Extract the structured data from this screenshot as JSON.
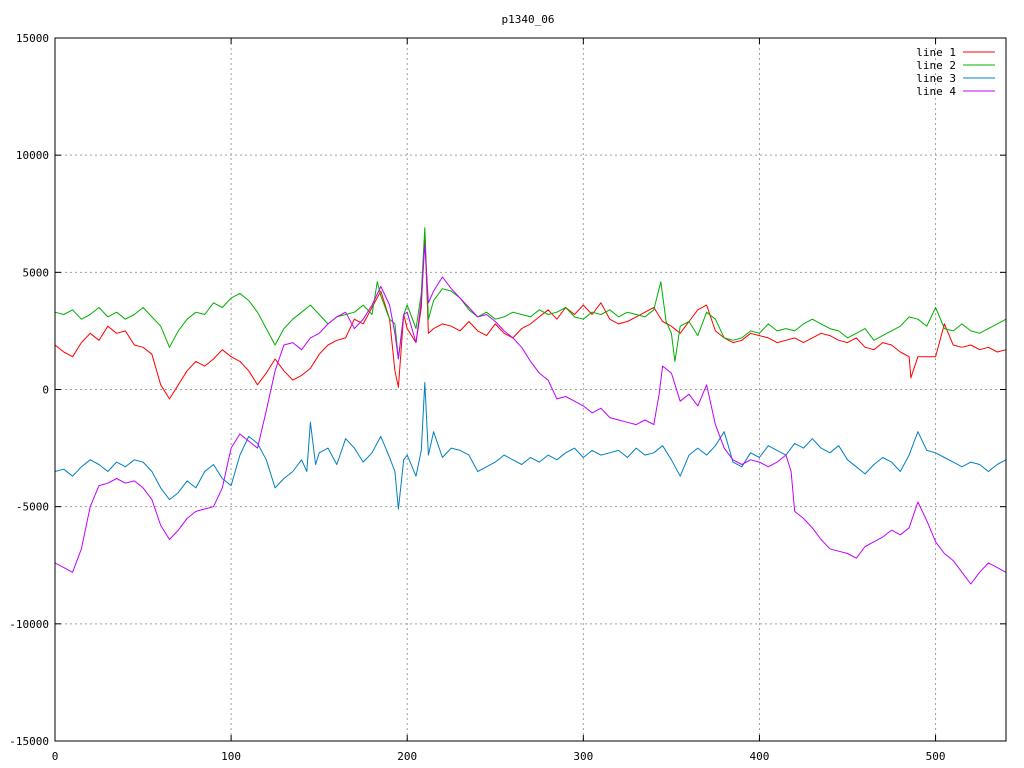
{
  "chart_data": {
    "type": "line",
    "title": "p1340_06",
    "xlabel": "",
    "ylabel": "",
    "xlim": [
      0,
      540
    ],
    "ylim": [
      -15000,
      15000
    ],
    "x_ticks": [
      "0",
      "100",
      "200",
      "300",
      "400",
      "500"
    ],
    "y_ticks": [
      "-15000",
      "-10000",
      "-5000",
      "0",
      "5000",
      "10000",
      "15000"
    ],
    "grid": true,
    "legend_position": "top-right",
    "series": [
      {
        "name": "line 1",
        "color": "#ff0000",
        "x": [
          0,
          5,
          10,
          15,
          20,
          25,
          30,
          35,
          40,
          45,
          50,
          55,
          60,
          65,
          70,
          75,
          80,
          85,
          90,
          95,
          100,
          105,
          110,
          115,
          120,
          125,
          130,
          135,
          140,
          145,
          150,
          155,
          160,
          165,
          170,
          175,
          180,
          185,
          190,
          193,
          195,
          198,
          200,
          205,
          208,
          210,
          212,
          215,
          220,
          225,
          230,
          235,
          240,
          245,
          250,
          255,
          260,
          265,
          270,
          275,
          280,
          285,
          290,
          295,
          300,
          305,
          310,
          315,
          320,
          325,
          330,
          335,
          340,
          345,
          350,
          355,
          360,
          365,
          370,
          375,
          380,
          385,
          390,
          395,
          400,
          405,
          410,
          415,
          420,
          425,
          430,
          435,
          440,
          445,
          450,
          455,
          460,
          465,
          470,
          475,
          480,
          485,
          486,
          490,
          495,
          500,
          505,
          510,
          515,
          520,
          525,
          530,
          535,
          540
        ],
        "y": [
          1900,
          1600,
          1400,
          2000,
          2400,
          2100,
          2700,
          2400,
          2500,
          1900,
          1800,
          1500,
          200,
          -400,
          200,
          800,
          1200,
          1000,
          1300,
          1700,
          1400,
          1200,
          800,
          200,
          700,
          1300,
          800,
          400,
          600,
          900,
          1500,
          1900,
          2100,
          2200,
          3000,
          2800,
          3500,
          4200,
          3000,
          800,
          100,
          3200,
          2600,
          2000,
          3500,
          6700,
          2400,
          2600,
          2800,
          2700,
          2500,
          2900,
          2500,
          2300,
          2800,
          2400,
          2200,
          2600,
          2800,
          3100,
          3400,
          3000,
          3500,
          3200,
          3600,
          3200,
          3700,
          3000,
          2800,
          2900,
          3100,
          3300,
          3500,
          2900,
          2700,
          2400,
          2900,
          3400,
          3600,
          2500,
          2200,
          2000,
          2100,
          2400,
          2300,
          2200,
          2000,
          2100,
          2200,
          2000,
          2200,
          2400,
          2300,
          2100,
          2000,
          2200,
          1800,
          1700,
          2000,
          1900,
          1600,
          1400,
          500,
          1400,
          1400,
          1400,
          2800,
          1900,
          1800,
          1900,
          1700,
          1800,
          1600,
          1700
        ]
      },
      {
        "name": "line 2",
        "color": "#00b000",
        "x": [
          0,
          5,
          10,
          15,
          20,
          25,
          30,
          35,
          40,
          45,
          50,
          55,
          60,
          65,
          70,
          75,
          80,
          85,
          90,
          95,
          100,
          105,
          110,
          115,
          120,
          125,
          130,
          135,
          140,
          145,
          150,
          155,
          160,
          165,
          170,
          175,
          180,
          183,
          185,
          190,
          193,
          195,
          198,
          200,
          205,
          208,
          210,
          212,
          215,
          220,
          225,
          230,
          235,
          240,
          245,
          250,
          255,
          260,
          265,
          270,
          275,
          280,
          285,
          290,
          295,
          300,
          305,
          310,
          315,
          320,
          325,
          330,
          335,
          340,
          344,
          347,
          350,
          352,
          355,
          360,
          365,
          370,
          375,
          380,
          385,
          390,
          395,
          400,
          405,
          410,
          415,
          420,
          425,
          430,
          435,
          440,
          445,
          450,
          455,
          460,
          465,
          470,
          475,
          480,
          485,
          490,
          495,
          500,
          505,
          510,
          515,
          520,
          525,
          530,
          535,
          540
        ],
        "y": [
          3300,
          3200,
          3400,
          3000,
          3200,
          3500,
          3100,
          3300,
          3000,
          3200,
          3500,
          3100,
          2700,
          1800,
          2500,
          3000,
          3300,
          3200,
          3700,
          3500,
          3900,
          4100,
          3800,
          3300,
          2600,
          1900,
          2600,
          3000,
          3300,
          3600,
          3200,
          2800,
          3100,
          3200,
          3300,
          3600,
          3200,
          4600,
          4000,
          3000,
          2800,
          1300,
          3200,
          3600,
          2600,
          4100,
          6900,
          3000,
          3800,
          4300,
          4200,
          3900,
          3400,
          3100,
          3300,
          3000,
          3100,
          3300,
          3200,
          3100,
          3400,
          3200,
          3300,
          3500,
          3100,
          3000,
          3300,
          3200,
          3400,
          3100,
          3300,
          3200,
          3100,
          3400,
          4600,
          2900,
          2400,
          1200,
          2700,
          2900,
          2300,
          3300,
          3000,
          2200,
          2100,
          2200,
          2500,
          2400,
          2800,
          2500,
          2600,
          2500,
          2800,
          3000,
          2800,
          2600,
          2500,
          2200,
          2400,
          2600,
          2100,
          2300,
          2500,
          2700,
          3100,
          3000,
          2700,
          3500,
          2600,
          2500,
          2800,
          2500,
          2400,
          2600,
          2800,
          3000
        ]
      },
      {
        "name": "line 3",
        "color": "#0080c0",
        "x": [
          0,
          5,
          10,
          15,
          20,
          25,
          30,
          35,
          40,
          45,
          50,
          55,
          60,
          65,
          70,
          75,
          80,
          85,
          90,
          95,
          100,
          105,
          110,
          115,
          120,
          125,
          130,
          135,
          140,
          143,
          145,
          148,
          150,
          155,
          160,
          165,
          170,
          175,
          180,
          185,
          190,
          193,
          195,
          198,
          200,
          205,
          208,
          210,
          212,
          215,
          220,
          225,
          230,
          235,
          240,
          245,
          250,
          255,
          260,
          265,
          270,
          275,
          280,
          285,
          290,
          295,
          300,
          305,
          310,
          315,
          320,
          325,
          330,
          335,
          340,
          345,
          350,
          355,
          360,
          365,
          370,
          375,
          380,
          385,
          390,
          395,
          400,
          405,
          410,
          415,
          420,
          425,
          430,
          435,
          440,
          445,
          450,
          455,
          460,
          465,
          470,
          475,
          480,
          485,
          490,
          495,
          500,
          505,
          510,
          515,
          520,
          525,
          530,
          535,
          540
        ],
        "y": [
          -3500,
          -3400,
          -3700,
          -3300,
          -3000,
          -3200,
          -3500,
          -3100,
          -3300,
          -3000,
          -3100,
          -3500,
          -4200,
          -4700,
          -4400,
          -3900,
          -4200,
          -3500,
          -3200,
          -3800,
          -4100,
          -2800,
          -2000,
          -2300,
          -3000,
          -4200,
          -3800,
          -3500,
          -3000,
          -3500,
          -1400,
          -3200,
          -2700,
          -2500,
          -3200,
          -2100,
          -2500,
          -3100,
          -2700,
          -2000,
          -2900,
          -3500,
          -5100,
          -3000,
          -2800,
          -3700,
          -2600,
          300,
          -2800,
          -1800,
          -2900,
          -2500,
          -2600,
          -2800,
          -3500,
          -3300,
          -3100,
          -2800,
          -3000,
          -3200,
          -2900,
          -3100,
          -2800,
          -3000,
          -2700,
          -2500,
          -2900,
          -2600,
          -2800,
          -2700,
          -2600,
          -2900,
          -2500,
          -2800,
          -2700,
          -2400,
          -3000,
          -3700,
          -2800,
          -2500,
          -2800,
          -2400,
          -1800,
          -3100,
          -3300,
          -2700,
          -2900,
          -2400,
          -2600,
          -2800,
          -2300,
          -2500,
          -2100,
          -2500,
          -2700,
          -2400,
          -3000,
          -3300,
          -3600,
          -3200,
          -2900,
          -3100,
          -3500,
          -2800,
          -1800,
          -2600,
          -2700,
          -2900,
          -3100,
          -3300,
          -3100,
          -3200,
          -3500,
          -3200,
          -3000
        ]
      },
      {
        "name": "line 4",
        "color": "#c000ff",
        "x": [
          0,
          5,
          10,
          15,
          20,
          25,
          30,
          35,
          40,
          45,
          50,
          55,
          60,
          65,
          70,
          75,
          80,
          85,
          90,
          95,
          100,
          105,
          110,
          115,
          120,
          125,
          130,
          135,
          140,
          145,
          150,
          155,
          160,
          165,
          170,
          175,
          180,
          185,
          190,
          193,
          195,
          198,
          200,
          205,
          208,
          210,
          212,
          215,
          220,
          225,
          230,
          235,
          240,
          245,
          250,
          255,
          260,
          265,
          270,
          275,
          280,
          285,
          290,
          295,
          300,
          305,
          310,
          315,
          320,
          325,
          330,
          335,
          340,
          343,
          345,
          350,
          355,
          360,
          365,
          370,
          375,
          380,
          385,
          390,
          395,
          400,
          405,
          410,
          415,
          418,
          420,
          425,
          430,
          435,
          440,
          445,
          450,
          455,
          460,
          465,
          470,
          475,
          480,
          485,
          490,
          495,
          500,
          505,
          510,
          515,
          520,
          525,
          530,
          535,
          540
        ],
        "y": [
          -7400,
          -7600,
          -7800,
          -6800,
          -5000,
          -4100,
          -4000,
          -3800,
          -4000,
          -3900,
          -4200,
          -4700,
          -5800,
          -6400,
          -6000,
          -5500,
          -5200,
          -5100,
          -5000,
          -4200,
          -2500,
          -1900,
          -2200,
          -2500,
          -900,
          800,
          1900,
          2000,
          1700,
          2200,
          2400,
          2800,
          3100,
          3300,
          2600,
          3000,
          3600,
          4400,
          3600,
          2400,
          1300,
          3200,
          3300,
          2000,
          3800,
          6200,
          3700,
          4200,
          4800,
          4300,
          3900,
          3500,
          3100,
          3200,
          2900,
          2500,
          2200,
          1800,
          1200,
          700,
          400,
          -400,
          -300,
          -500,
          -700,
          -1000,
          -800,
          -1200,
          -1300,
          -1400,
          -1500,
          -1300,
          -1500,
          -200,
          1000,
          700,
          -500,
          -200,
          -700,
          200,
          -1500,
          -2500,
          -3000,
          -3200,
          -3000,
          -3100,
          -3300,
          -3100,
          -2800,
          -3500,
          -5200,
          -5500,
          -5900,
          -6400,
          -6800,
          -6900,
          -7000,
          -7200,
          -6700,
          -6500,
          -6300,
          -6000,
          -6200,
          -5900,
          -4800,
          -5600,
          -6500,
          -7000,
          -7300,
          -7800,
          -8300,
          -7800,
          -7400,
          -7600,
          -7800
        ]
      }
    ]
  }
}
